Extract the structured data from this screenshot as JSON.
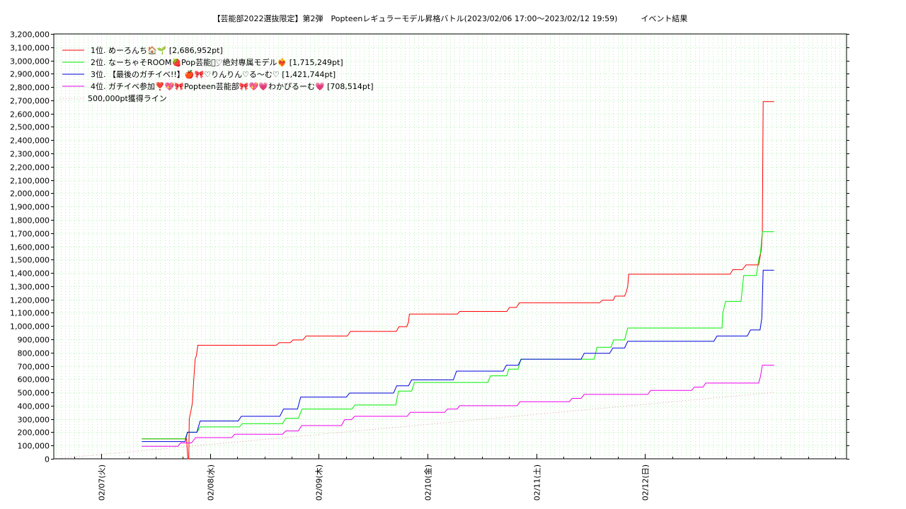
{
  "chart_data": {
    "type": "line",
    "title": "【芸能部2022選抜限定】第2弾　Popteenレギュラーモデル昇格バトル(2023/02/06 17:00～2023/02/12 19:59)　　　イベント結果",
    "xlabel": "",
    "ylabel": "",
    "x_unit": "hours since 2023/02/07 00:00",
    "xlim": [
      -10.5,
      164.5
    ],
    "ylim": [
      0,
      3200000
    ],
    "y_ticks": [
      0,
      100000,
      200000,
      300000,
      400000,
      500000,
      600000,
      700000,
      800000,
      900000,
      1000000,
      1100000,
      1200000,
      1300000,
      1400000,
      1500000,
      1600000,
      1700000,
      1800000,
      1900000,
      2000000,
      2100000,
      2200000,
      2300000,
      2400000,
      2500000,
      2600000,
      2700000,
      2800000,
      2900000,
      3000000,
      3100000,
      3200000
    ],
    "y_tick_labels": [
      "0",
      "100,000",
      "200,000",
      "300,000",
      "400,000",
      "500,000",
      "600,000",
      "700,000",
      "800,000",
      "900,000",
      "1,000,000",
      "1,100,000",
      "1,200,000",
      "1,300,000",
      "1,400,000",
      "1,500,000",
      "1,600,000",
      "1,700,000",
      "1,800,000",
      "1,900,000",
      "2,000,000",
      "2,100,000",
      "2,200,000",
      "2,300,000",
      "2,400,000",
      "2,500,000",
      "2,600,000",
      "2,700,000",
      "2,800,000",
      "2,900,000",
      "3,000,000",
      "3,100,000",
      "3,200,000"
    ],
    "x_ticks": [
      0,
      24,
      48,
      72,
      96,
      120
    ],
    "x_tick_labels": [
      "02/07(火)",
      "02/08(水)",
      "02/09(木)",
      "02/10(金)",
      "02/11(土)",
      "02/12(日)"
    ],
    "x_minor_step": 6,
    "grid": true,
    "legend_position": "top-left",
    "series": [
      {
        "name": "1位. めーろんち🏠🌱 [2,686,952pt]",
        "color": "#ff0000",
        "points": [
          [
            8.9,
            150000
          ],
          [
            18.8,
            150000
          ],
          [
            19.1,
            0
          ],
          [
            19.3,
            0
          ],
          [
            19.4,
            300000
          ],
          [
            19.7,
            350000
          ],
          [
            20.1,
            420000
          ],
          [
            20.4,
            600000
          ],
          [
            20.7,
            750000
          ],
          [
            21.0,
            780000
          ],
          [
            21.3,
            855000
          ],
          [
            38.6,
            855000
          ],
          [
            39.3,
            875000
          ],
          [
            41.7,
            875000
          ],
          [
            42.3,
            895000
          ],
          [
            44.5,
            895000
          ],
          [
            45.2,
            925000
          ],
          [
            54.3,
            925000
          ],
          [
            55.0,
            960000
          ],
          [
            65.1,
            960000
          ],
          [
            65.7,
            995000
          ],
          [
            67.4,
            995000
          ],
          [
            67.8,
            1030000
          ],
          [
            68.0,
            1090000
          ],
          [
            78.6,
            1090000
          ],
          [
            79.1,
            1110000
          ],
          [
            89.5,
            1110000
          ],
          [
            90.1,
            1140000
          ],
          [
            91.6,
            1140000
          ],
          [
            92.3,
            1175000
          ],
          [
            110.0,
            1175000
          ],
          [
            110.6,
            1195000
          ],
          [
            113.0,
            1195000
          ],
          [
            113.4,
            1225000
          ],
          [
            115.5,
            1225000
          ],
          [
            115.9,
            1260000
          ],
          [
            116.2,
            1300000
          ],
          [
            116.4,
            1390000
          ],
          [
            138.8,
            1390000
          ],
          [
            139.4,
            1425000
          ],
          [
            141.5,
            1425000
          ],
          [
            142.3,
            1460000
          ],
          [
            145.1,
            1460000
          ],
          [
            145.4,
            1520000
          ],
          [
            145.7,
            1580000
          ],
          [
            145.9,
            1700000
          ],
          [
            146.1,
            2690000
          ],
          [
            148.5,
            2690000
          ]
        ]
      },
      {
        "name": "2位. なーちゃそROOM🍓Pop芸能部ِ♡絶対専属モデル❤‍🔥 [1,715,249pt]",
        "color": "#00ee00",
        "points": [
          [
            8.9,
            150000
          ],
          [
            18.5,
            150000
          ],
          [
            19.0,
            200000
          ],
          [
            21.1,
            200000
          ],
          [
            21.8,
            240000
          ],
          [
            30.5,
            240000
          ],
          [
            31.1,
            265000
          ],
          [
            40.0,
            265000
          ],
          [
            40.7,
            305000
          ],
          [
            43.5,
            305000
          ],
          [
            44.3,
            375000
          ],
          [
            55.3,
            375000
          ],
          [
            56.0,
            405000
          ],
          [
            65.0,
            405000
          ],
          [
            65.6,
            510000
          ],
          [
            68.5,
            510000
          ],
          [
            69.1,
            575000
          ],
          [
            85.3,
            575000
          ],
          [
            85.9,
            625000
          ],
          [
            89.5,
            625000
          ],
          [
            89.9,
            675000
          ],
          [
            92.0,
            675000
          ],
          [
            92.6,
            750000
          ],
          [
            108.8,
            750000
          ],
          [
            109.4,
            840000
          ],
          [
            112.5,
            840000
          ],
          [
            113.1,
            895000
          ],
          [
            115.5,
            895000
          ],
          [
            116.2,
            985000
          ],
          [
            137.0,
            985000
          ],
          [
            137.2,
            1100000
          ],
          [
            137.8,
            1185000
          ],
          [
            141.2,
            1185000
          ],
          [
            141.8,
            1380000
          ],
          [
            144.6,
            1380000
          ],
          [
            145.1,
            1500000
          ],
          [
            145.5,
            1550000
          ],
          [
            145.9,
            1710000
          ],
          [
            148.5,
            1710000
          ]
        ]
      },
      {
        "name": "3位. 【最後のガチイベ!!】🍎🎀♡りんりん♡る〜む♡ [1,421,744pt]",
        "color": "#0000dd",
        "points": [
          [
            8.9,
            130000
          ],
          [
            18.5,
            130000
          ],
          [
            19.0,
            200000
          ],
          [
            21.1,
            200000
          ],
          [
            21.8,
            285000
          ],
          [
            30.2,
            285000
          ],
          [
            30.9,
            320000
          ],
          [
            39.4,
            320000
          ],
          [
            40.2,
            375000
          ],
          [
            43.3,
            375000
          ],
          [
            44.0,
            465000
          ],
          [
            54.1,
            465000
          ],
          [
            54.8,
            495000
          ],
          [
            64.5,
            495000
          ],
          [
            65.2,
            550000
          ],
          [
            67.8,
            550000
          ],
          [
            68.5,
            595000
          ],
          [
            77.7,
            595000
          ],
          [
            78.4,
            660000
          ],
          [
            88.7,
            660000
          ],
          [
            89.4,
            705000
          ],
          [
            92.0,
            705000
          ],
          [
            92.7,
            750000
          ],
          [
            105.9,
            750000
          ],
          [
            106.6,
            795000
          ],
          [
            112.2,
            795000
          ],
          [
            112.9,
            835000
          ],
          [
            115.5,
            835000
          ],
          [
            116.2,
            885000
          ],
          [
            135.2,
            885000
          ],
          [
            135.9,
            925000
          ],
          [
            142.6,
            925000
          ],
          [
            143.3,
            970000
          ],
          [
            145.4,
            970000
          ],
          [
            145.8,
            1060000
          ],
          [
            146.1,
            1420000
          ],
          [
            148.5,
            1420000
          ]
        ]
      },
      {
        "name": "4位. ガチイベ参加❣️💖🎀Popteen芸能部🎀💖💗わかぴるーむ💗 [708,514pt]",
        "color": "#ee00ee",
        "points": [
          [
            8.9,
            95000
          ],
          [
            16.9,
            95000
          ],
          [
            17.5,
            120000
          ],
          [
            19.9,
            120000
          ],
          [
            20.8,
            160000
          ],
          [
            28.8,
            160000
          ],
          [
            29.4,
            185000
          ],
          [
            40.0,
            185000
          ],
          [
            40.7,
            210000
          ],
          [
            43.5,
            210000
          ],
          [
            44.2,
            250000
          ],
          [
            53.0,
            250000
          ],
          [
            53.7,
            295000
          ],
          [
            55.2,
            295000
          ],
          [
            55.9,
            320000
          ],
          [
            67.5,
            320000
          ],
          [
            68.2,
            350000
          ],
          [
            75.8,
            350000
          ],
          [
            76.4,
            375000
          ],
          [
            78.5,
            375000
          ],
          [
            79.1,
            400000
          ],
          [
            91.8,
            400000
          ],
          [
            92.4,
            430000
          ],
          [
            103.3,
            430000
          ],
          [
            103.9,
            455000
          ],
          [
            105.9,
            455000
          ],
          [
            106.6,
            485000
          ],
          [
            120.6,
            485000
          ],
          [
            121.3,
            515000
          ],
          [
            130.3,
            515000
          ],
          [
            130.9,
            540000
          ],
          [
            132.8,
            540000
          ],
          [
            133.4,
            570000
          ],
          [
            145.1,
            570000
          ],
          [
            145.5,
            620000
          ],
          [
            145.9,
            705000
          ],
          [
            148.5,
            705000
          ]
        ]
      },
      {
        "name": "500,000pt獲得ライン",
        "color": "#d8a0a0",
        "dashed": true,
        "points": [
          [
            -10.5,
            0
          ],
          [
            148.5,
            500000
          ]
        ]
      }
    ]
  }
}
